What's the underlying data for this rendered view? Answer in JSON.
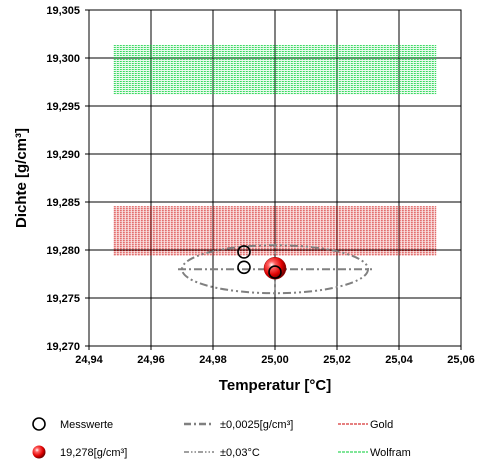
{
  "chart_data": {
    "type": "scatter",
    "xlabel": "Temperatur [°C]",
    "ylabel": "Dichte [g/cm³]",
    "xlim": [
      24.94,
      25.06
    ],
    "ylim": [
      19.27,
      19.305
    ],
    "x_ticks": [
      "24,94",
      "24,96",
      "24,98",
      "25,00",
      "25,02",
      "25,04",
      "25,06"
    ],
    "y_ticks": [
      "19,270",
      "19,275",
      "19,280",
      "19,285",
      "19,290",
      "19,295",
      "19,300",
      "19,305"
    ],
    "grid": true,
    "bands": [
      {
        "name": "Gold",
        "x_range": [
          24.948,
          25.052
        ],
        "y_range": [
          19.2795,
          19.2845
        ],
        "color": "#cc0000"
      },
      {
        "name": "Wolfram",
        "x_range": [
          24.948,
          25.052
        ],
        "y_range": [
          19.2962,
          19.3013
        ],
        "color": "#00cc33"
      }
    ],
    "measurements": {
      "name": "Messwerte",
      "points": [
        {
          "x": 24.99,
          "y": 19.2798
        },
        {
          "x": 24.99,
          "y": 19.2782
        },
        {
          "x": 25.0,
          "y": 19.2777
        }
      ]
    },
    "mean_point": {
      "name": "19,278[g/cm³]",
      "x": 25.0,
      "y": 19.2781,
      "color": "#e00000"
    },
    "uncertainty_density": {
      "name": "±0,0025[g/cm³]",
      "center": [
        25.0,
        19.278
      ],
      "half_height": 0.0025
    },
    "uncertainty_temperature": {
      "name": "±0,03°C",
      "center": [
        25.0,
        19.278
      ],
      "half_width": 0.03
    },
    "legend": [
      {
        "label": "Messwerte",
        "symbol": "open-circle"
      },
      {
        "label": "±0,0025[g/cm³]",
        "symbol": "dash-dot-line"
      },
      {
        "label": "Gold",
        "symbol": "red-dash-line"
      },
      {
        "label": "19,278[g/cm³]",
        "symbol": "red-sphere"
      },
      {
        "label": "±0,03°C",
        "symbol": "dash-dot-dot-line"
      },
      {
        "label": "Wolfram",
        "symbol": "green-dash-line"
      }
    ]
  }
}
